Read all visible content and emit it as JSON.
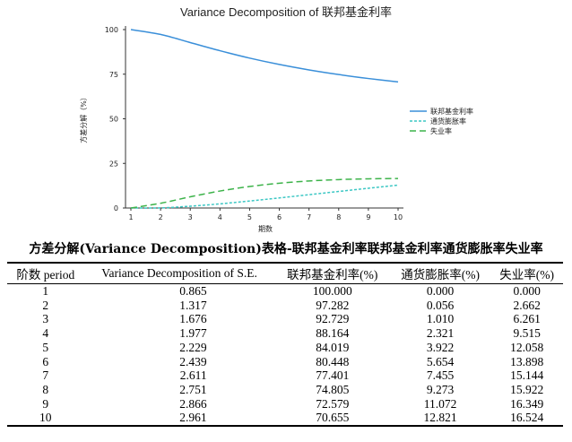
{
  "chart_data": {
    "type": "line",
    "title": "Variance Decomposition of 联邦基金利率",
    "xlabel": "期数",
    "ylabel": "方差分解（%）",
    "x": [
      1,
      2,
      3,
      4,
      5,
      6,
      7,
      8,
      9,
      10
    ],
    "xlim": [
      1,
      10
    ],
    "ylim": [
      0,
      100
    ],
    "yticks": [
      0,
      25,
      50,
      75,
      100
    ],
    "grid": false,
    "legend_position": "right",
    "series": [
      {
        "name": "联邦基金利率",
        "color": "#3a8fd9",
        "dash": "solid",
        "values": [
          100.0,
          97.282,
          92.729,
          88.164,
          84.019,
          80.448,
          77.401,
          74.805,
          72.579,
          70.655
        ]
      },
      {
        "name": "通货膨胀率",
        "color": "#3cc7c4",
        "dash": "dotted",
        "values": [
          0.0,
          0.056,
          1.01,
          2.321,
          3.922,
          5.654,
          7.455,
          9.273,
          11.072,
          12.821
        ]
      },
      {
        "name": "失业率",
        "color": "#3db34a",
        "dash": "dashed",
        "values": [
          0.0,
          2.662,
          6.261,
          9.515,
          12.058,
          13.898,
          15.144,
          15.922,
          16.349,
          16.524
        ]
      }
    ]
  },
  "table": {
    "caption": "方差分解(Variance Decomposition)表格-联邦基金利率联邦基金利率通货膨胀率失业率",
    "headers": [
      "阶数 period",
      "Variance Decomposition of S.E.",
      "联邦基金利率(%)",
      "通货膨胀率(%)",
      "失业率(%)"
    ],
    "rows": [
      [
        "1",
        "0.865",
        "100.000",
        "0.000",
        "0.000"
      ],
      [
        "2",
        "1.317",
        "97.282",
        "0.056",
        "2.662"
      ],
      [
        "3",
        "1.676",
        "92.729",
        "1.010",
        "6.261"
      ],
      [
        "4",
        "1.977",
        "88.164",
        "2.321",
        "9.515"
      ],
      [
        "5",
        "2.229",
        "84.019",
        "3.922",
        "12.058"
      ],
      [
        "6",
        "2.439",
        "80.448",
        "5.654",
        "13.898"
      ],
      [
        "7",
        "2.611",
        "77.401",
        "7.455",
        "15.144"
      ],
      [
        "8",
        "2.751",
        "74.805",
        "9.273",
        "15.922"
      ],
      [
        "9",
        "2.866",
        "72.579",
        "11.072",
        "16.349"
      ],
      [
        "10",
        "2.961",
        "70.655",
        "12.821",
        "16.524"
      ]
    ]
  }
}
